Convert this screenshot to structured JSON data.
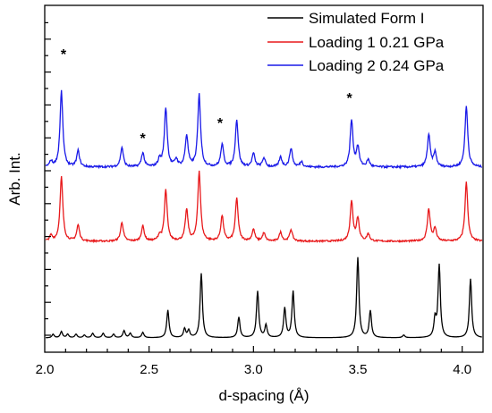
{
  "chart_data": {
    "type": "line",
    "title": "",
    "xlabel": "d-spacing (Å)",
    "ylabel": "Arb. Int.",
    "xlim": [
      2.0,
      4.1
    ],
    "x_ticks": [
      "2.0",
      "2.5",
      "3.0",
      "3.5",
      "4.0"
    ],
    "legend_placement": "top-right",
    "series": [
      {
        "name": "Simulated Form I",
        "color": "#000000",
        "baseline": 0.0,
        "noise": 0.0,
        "peaks": [
          [
            2.04,
            0.04
          ],
          [
            2.08,
            0.07
          ],
          [
            2.11,
            0.04
          ],
          [
            2.15,
            0.04
          ],
          [
            2.19,
            0.03
          ],
          [
            2.23,
            0.05
          ],
          [
            2.28,
            0.05
          ],
          [
            2.33,
            0.04
          ],
          [
            2.38,
            0.08
          ],
          [
            2.41,
            0.05
          ],
          [
            2.47,
            0.06
          ],
          [
            2.59,
            0.31
          ],
          [
            2.67,
            0.1
          ],
          [
            2.69,
            0.08
          ],
          [
            2.75,
            0.72
          ],
          [
            2.93,
            0.23
          ],
          [
            3.02,
            0.52
          ],
          [
            3.06,
            0.14
          ],
          [
            3.15,
            0.33
          ],
          [
            3.19,
            0.52
          ],
          [
            3.5,
            0.9
          ],
          [
            3.56,
            0.3
          ],
          [
            3.72,
            0.03
          ],
          [
            3.87,
            0.2
          ],
          [
            3.89,
            0.81
          ],
          [
            4.04,
            0.66
          ]
        ]
      },
      {
        "name": "Loading 1 0.21 GPa",
        "color": "#e8191b",
        "baseline": 0.0,
        "noise": 0.018,
        "peaks": [
          [
            2.03,
            0.06
          ],
          [
            2.08,
            0.72
          ],
          [
            2.16,
            0.18
          ],
          [
            2.37,
            0.21
          ],
          [
            2.47,
            0.17
          ],
          [
            2.55,
            0.06
          ],
          [
            2.58,
            0.57
          ],
          [
            2.68,
            0.35
          ],
          [
            2.74,
            0.78
          ],
          [
            2.85,
            0.28
          ],
          [
            2.92,
            0.48
          ],
          [
            3.0,
            0.13
          ],
          [
            3.05,
            0.09
          ],
          [
            3.13,
            0.1
          ],
          [
            3.18,
            0.13
          ],
          [
            3.47,
            0.44
          ],
          [
            3.5,
            0.25
          ],
          [
            3.55,
            0.08
          ],
          [
            3.84,
            0.36
          ],
          [
            3.87,
            0.14
          ],
          [
            4.02,
            0.66
          ]
        ]
      },
      {
        "name": "Loading 2 0.24 GPa",
        "color": "#1a1ae8",
        "baseline": 0.0,
        "noise": 0.022,
        "peaks": [
          [
            2.03,
            0.06
          ],
          [
            2.08,
            0.85
          ],
          [
            2.16,
            0.18
          ],
          [
            2.37,
            0.22
          ],
          [
            2.47,
            0.16
          ],
          [
            2.55,
            0.08
          ],
          [
            2.58,
            0.66
          ],
          [
            2.63,
            0.08
          ],
          [
            2.68,
            0.35
          ],
          [
            2.74,
            0.81
          ],
          [
            2.85,
            0.25
          ],
          [
            2.92,
            0.53
          ],
          [
            3.0,
            0.15
          ],
          [
            3.05,
            0.1
          ],
          [
            3.13,
            0.11
          ],
          [
            3.18,
            0.21
          ],
          [
            3.23,
            0.06
          ],
          [
            3.47,
            0.52
          ],
          [
            3.5,
            0.22
          ],
          [
            3.55,
            0.08
          ],
          [
            3.84,
            0.36
          ],
          [
            3.87,
            0.16
          ],
          [
            4.02,
            0.68
          ]
        ]
      }
    ],
    "annotations": [
      "*",
      "*",
      "*",
      "*"
    ],
    "annotation_x": [
      2.09,
      2.47,
      2.84,
      3.46
    ]
  }
}
